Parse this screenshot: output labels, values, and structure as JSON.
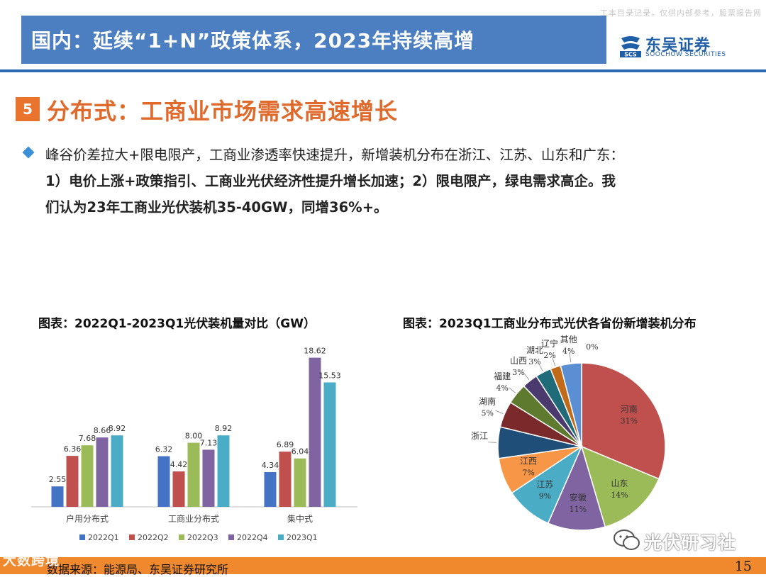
{
  "watermark_top": "工本目录记录，仅供内部参考，股票报告网",
  "header": {
    "title": "国内：延续“1+N”政策体系，2023年持续高增"
  },
  "logo": {
    "cn": "东吴证券",
    "en": "SOOCHOW SECURITIES",
    "mark": "SCS"
  },
  "section": {
    "number": "5",
    "title": "分布式：工商业市场需求高速增长"
  },
  "paragraph": {
    "line1": "峰谷价差拉大+限电限产，工商业渗透率快速提升，新增装机分布在浙江、江苏、山东和广东：",
    "line2": "1）电价上涨+政策指引、工商业光伏经济性提升增长加速；2）限电限产，绿电需求高企。我",
    "line3": "们认为23年工商业光伏装机35-40GW，同增36%+。"
  },
  "bar_chart": {
    "title": "图表：2022Q1-2023Q1光伏装机量对比（GW）"
  },
  "pie_chart": {
    "title": "图表：2023Q1工商业分布式光伏各省份新增装机分布"
  },
  "chart_data": [
    {
      "type": "bar",
      "title": "图表：2022Q1-2023Q1光伏装机量对比（GW）",
      "categories": [
        "户用分布式",
        "工商业分布式",
        "集中式"
      ],
      "series": [
        {
          "name": "2022Q1",
          "color": "#4472c4",
          "values": [
            2.55,
            6.32,
            4.34
          ]
        },
        {
          "name": "2022Q2",
          "color": "#c0504d",
          "values": [
            6.36,
            4.42,
            6.89
          ]
        },
        {
          "name": "2022Q3",
          "color": "#9bbb59",
          "values": [
            7.68,
            8.0,
            6.04
          ]
        },
        {
          "name": "2022Q4",
          "color": "#8064a2",
          "values": [
            8.66,
            7.13,
            18.62
          ]
        },
        {
          "name": "2023Q1",
          "color": "#4bacc6",
          "values": [
            8.92,
            8.92,
            15.53
          ]
        }
      ],
      "ylim": [
        0,
        20
      ],
      "legend": "bottom"
    },
    {
      "type": "pie",
      "title": "图表：2023Q1工商业分布式光伏各省份新增装机分布",
      "slices": [
        {
          "name": "河南",
          "label": "31%",
          "value": 31,
          "color": "#c0504d"
        },
        {
          "name": "山东",
          "label": "14%",
          "value": 14,
          "color": "#9bbb59"
        },
        {
          "name": "安徽",
          "label": "11%",
          "value": 11,
          "color": "#8064a2"
        },
        {
          "name": "江苏",
          "label": "9%",
          "value": 9,
          "color": "#4bacc6"
        },
        {
          "name": "江西",
          "label": "7%",
          "value": 7,
          "color": "#f79646"
        },
        {
          "name": "浙江",
          "label": "",
          "value": 6,
          "color": "#1f4e79"
        },
        {
          "name": "湖南",
          "label": "5%",
          "value": 5,
          "color": "#7a2a2a"
        },
        {
          "name": "福建",
          "label": "4%",
          "value": 4,
          "color": "#5e7a2e"
        },
        {
          "name": "山西",
          "label": "3%",
          "value": 3,
          "color": "#4a3a6e"
        },
        {
          "name": "湖北",
          "label": "3%",
          "value": 3,
          "color": "#1f6b7a"
        },
        {
          "name": "辽宁",
          "label": "2%",
          "value": 2,
          "color": "#c06a1a"
        },
        {
          "name": "其他",
          "label": "4%",
          "value": 4,
          "color": "#5b8fd4"
        },
        {
          "name": "",
          "label": "0%",
          "value": 0.0001,
          "color": "#a0a0a0"
        }
      ]
    }
  ],
  "footer": {
    "source": "数据来源：能源局、东吴证券研究所",
    "page": "15",
    "wm_left": "大数跨境",
    "wm_right": "光伏研习社"
  }
}
